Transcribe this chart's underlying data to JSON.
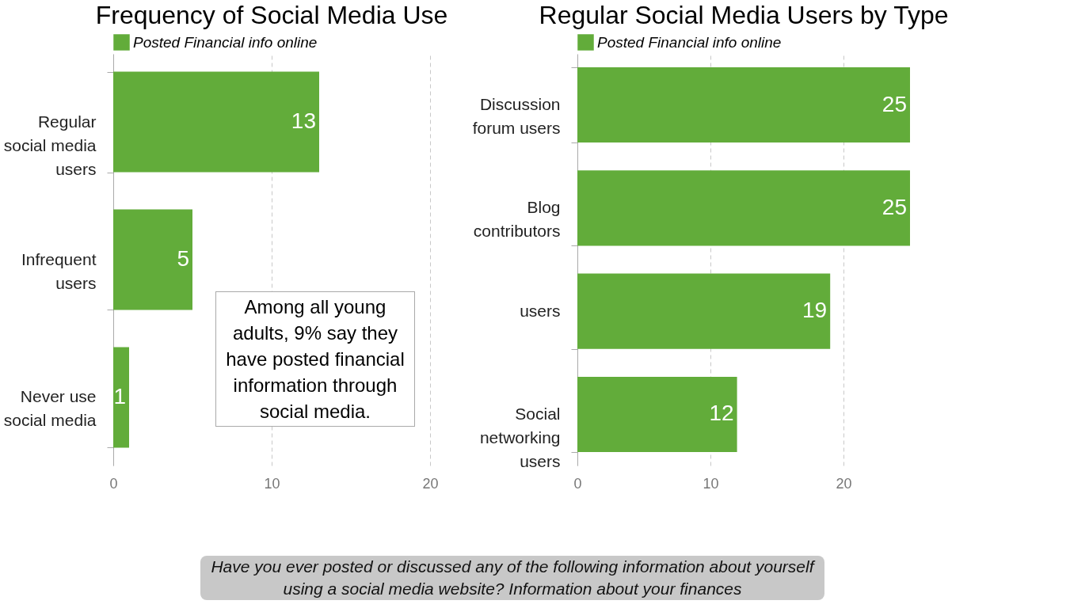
{
  "chart_data": [
    {
      "type": "bar",
      "orientation": "horizontal",
      "title": "Frequency of Social Media Use",
      "categories": [
        "Regular social media users",
        "Infrequent users",
        "Never use social media"
      ],
      "series": [
        {
          "name": "Posted Financial info online",
          "color": "#62ac3a",
          "values": [
            13,
            5,
            1
          ]
        }
      ],
      "xlim": [
        0,
        20
      ],
      "xticks": [
        0,
        10,
        20
      ],
      "grid": "x",
      "legend": "top",
      "data_labels": true,
      "annotations": [
        "Among all young adults, 9% say they have posted financial information through social media."
      ]
    },
    {
      "type": "bar",
      "orientation": "horizontal",
      "title": "Regular Social Media Users by Type",
      "categories": [
        "Discussion forum users",
        "Blog contributors",
        "users",
        "Social networking users"
      ],
      "series": [
        {
          "name": "Posted Financial info online",
          "color": "#62ac3a",
          "values": [
            25,
            25,
            19,
            12
          ]
        }
      ],
      "xlim": [
        0,
        25
      ],
      "xticks": [
        0,
        10,
        20
      ],
      "grid": "x",
      "legend": "top",
      "data_labels": true,
      "annotations": [
        "Have you ever posted or discussed any of the following information about yourself using a social media website? Information about your finances"
      ]
    }
  ]
}
